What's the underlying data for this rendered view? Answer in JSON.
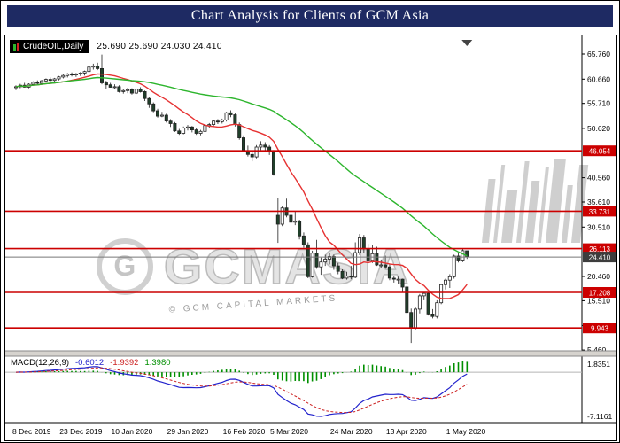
{
  "title_bar": {
    "title": "Chart Analysis for Clients of GCM Asia"
  },
  "symbol_header": {
    "symbol": "CrudeOIL,Daily",
    "ohlc": "25.690 25.690 24.030 24.410"
  },
  "watermark": {
    "logo_letter": "G",
    "brand": "GCMASIA",
    "caption": "© GCM CAPITAL MARKETS"
  },
  "macd_header": {
    "label": "MACD(12,26,9)",
    "values": [
      "-0.6012",
      "-1.9392",
      "1.3980"
    ]
  },
  "colors": {
    "title_bar_bg": "#1e2a63",
    "level_line": "#cc0000",
    "current_price_line": "#777777",
    "current_price_tag": "#3d3d3d",
    "ma_fast": "#e63232",
    "ma_slow": "#2db52d",
    "macd_line": "#2222cc",
    "macd_signal": "#cc2222",
    "macd_histogram": "#008f00"
  },
  "chart_data": {
    "type": "candlestick",
    "title": "CrudeOIL,Daily",
    "timeframe": "Daily",
    "ylim": [
      4.5,
      66.5
    ],
    "y_ticks": [
      65.76,
      60.66,
      55.71,
      50.62,
      40.56,
      35.61,
      30.51,
      20.46,
      15.51,
      10.46,
      5.46
    ],
    "x_ticks": [
      {
        "label": "8 Dec 2019",
        "i": 0
      },
      {
        "label": "23 Dec 2019",
        "i": 11
      },
      {
        "label": "10 Jan 2020",
        "i": 23
      },
      {
        "label": "29 Jan 2020",
        "i": 36
      },
      {
        "label": "16 Feb 2020",
        "i": 49
      },
      {
        "label": "5 Mar 2020",
        "i": 60
      },
      {
        "label": "24 Mar 2020",
        "i": 74
      },
      {
        "label": "13 Apr 2020",
        "i": 87
      },
      {
        "label": "1 May 2020",
        "i": 101
      }
    ],
    "levels": [
      46.054,
      33.731,
      26.113,
      17.208,
      9.943
    ],
    "last_price": 24.41,
    "overlays": [
      {
        "name": "MA fast",
        "type": "sma",
        "period": 13,
        "color": "#e63232"
      },
      {
        "name": "MA slow",
        "type": "sma",
        "period": 50,
        "color": "#2db52d"
      }
    ],
    "indicator": {
      "name": "MACD",
      "fast": 12,
      "slow": 26,
      "signal": 9,
      "values_display": [
        "-0.6012",
        "-1.9392",
        "1.3980"
      ],
      "colors": {
        "macd": "#2222cc",
        "signal": "#cc2222",
        "histogram": "#008f00"
      }
    },
    "macd_scale": {
      "max": "1.8351",
      "min": "-7.1161"
    },
    "ohlc": [
      [
        58.9,
        59.4,
        58.4,
        59.1
      ],
      [
        59.1,
        59.7,
        58.8,
        59.4
      ],
      [
        59.4,
        59.9,
        58.9,
        59.0
      ],
      [
        59.0,
        59.8,
        58.8,
        59.6
      ],
      [
        59.6,
        60.2,
        59.3,
        60.0
      ],
      [
        60.0,
        60.4,
        59.5,
        59.8
      ],
      [
        59.8,
        60.5,
        59.6,
        60.3
      ],
      [
        60.3,
        60.8,
        60.0,
        60.6
      ],
      [
        60.6,
        61.0,
        60.1,
        60.4
      ],
      [
        60.4,
        60.9,
        60.0,
        60.7
      ],
      [
        60.7,
        61.3,
        60.4,
        61.1
      ],
      [
        61.1,
        61.6,
        60.8,
        61.4
      ],
      [
        61.4,
        61.9,
        61.0,
        61.7
      ],
      [
        61.7,
        62.0,
        61.2,
        61.5
      ],
      [
        61.5,
        61.9,
        61.1,
        61.7
      ],
      [
        61.7,
        62.1,
        61.3,
        61.9
      ],
      [
        61.9,
        62.4,
        61.4,
        62.2
      ],
      [
        62.2,
        64.1,
        61.9,
        63.1
      ],
      [
        63.1,
        63.8,
        62.6,
        63.3
      ],
      [
        63.3,
        64.0,
        62.5,
        62.8
      ],
      [
        62.8,
        65.65,
        59.6,
        59.9
      ],
      [
        59.9,
        60.3,
        58.7,
        59.5
      ],
      [
        59.5,
        59.9,
        58.9,
        59.0
      ],
      [
        59.0,
        59.6,
        58.6,
        59.1
      ],
      [
        59.1,
        59.4,
        57.9,
        58.1
      ],
      [
        58.1,
        58.6,
        57.7,
        58.3
      ],
      [
        58.3,
        58.9,
        57.8,
        58.5
      ],
      [
        58.5,
        58.8,
        57.5,
        57.8
      ],
      [
        57.8,
        58.7,
        57.6,
        58.6
      ],
      [
        58.6,
        59.0,
        57.9,
        58.1
      ],
      [
        58.1,
        58.3,
        56.2,
        56.7
      ],
      [
        56.7,
        57.0,
        54.8,
        55.6
      ],
      [
        55.6,
        55.9,
        53.9,
        54.2
      ],
      [
        54.2,
        54.6,
        52.8,
        53.1
      ],
      [
        53.1,
        54.0,
        52.9,
        53.3
      ],
      [
        53.3,
        53.6,
        51.8,
        52.1
      ],
      [
        52.1,
        52.5,
        50.9,
        51.6
      ],
      [
        51.6,
        51.9,
        49.9,
        50.1
      ],
      [
        50.1,
        50.5,
        49.3,
        49.6
      ],
      [
        49.6,
        51.0,
        49.4,
        50.7
      ],
      [
        50.7,
        51.3,
        50.2,
        50.9
      ],
      [
        50.9,
        51.1,
        49.8,
        50.3
      ],
      [
        50.3,
        50.7,
        49.3,
        49.6
      ],
      [
        49.6,
        50.3,
        49.2,
        50.0
      ],
      [
        50.0,
        51.5,
        49.8,
        51.2
      ],
      [
        51.2,
        51.7,
        50.7,
        51.4
      ],
      [
        51.4,
        52.3,
        51.0,
        52.1
      ],
      [
        52.1,
        52.5,
        51.5,
        52.0
      ],
      [
        52.0,
        52.6,
        51.6,
        52.3
      ],
      [
        52.3,
        54.0,
        52.0,
        53.8
      ],
      [
        53.8,
        54.3,
        52.9,
        53.4
      ],
      [
        53.4,
        53.7,
        51.0,
        51.4
      ],
      [
        51.4,
        51.8,
        48.3,
        48.7
      ],
      [
        48.7,
        49.2,
        45.8,
        46.1
      ],
      [
        46.1,
        47.1,
        44.9,
        45.3
      ],
      [
        45.3,
        46.0,
        43.9,
        44.8
      ],
      [
        44.8,
        47.2,
        44.5,
        46.8
      ],
      [
        46.8,
        48.0,
        46.2,
        47.2
      ],
      [
        47.2,
        47.8,
        45.9,
        46.8
      ],
      [
        46.8,
        47.2,
        45.2,
        45.9
      ],
      [
        45.9,
        46.2,
        41.0,
        41.3
      ],
      [
        32.9,
        36.4,
        27.3,
        31.1
      ],
      [
        31.1,
        34.9,
        30.7,
        34.4
      ],
      [
        34.4,
        36.3,
        32.5,
        32.9
      ],
      [
        32.9,
        33.9,
        30.6,
        31.5
      ],
      [
        31.5,
        33.8,
        30.9,
        31.7
      ],
      [
        31.7,
        32.0,
        28.0,
        28.7
      ],
      [
        28.7,
        29.4,
        26.3,
        26.9
      ],
      [
        26.9,
        27.4,
        20.1,
        20.4
      ],
      [
        20.4,
        25.7,
        20.2,
        25.2
      ],
      [
        25.2,
        27.9,
        22.0,
        22.4
      ],
      [
        22.4,
        24.3,
        20.8,
        23.4
      ],
      [
        23.4,
        24.9,
        22.6,
        24.0
      ],
      [
        24.0,
        25.2,
        22.9,
        24.5
      ],
      [
        24.5,
        24.9,
        21.8,
        22.6
      ],
      [
        22.6,
        23.2,
        20.9,
        21.5
      ],
      [
        21.5,
        21.9,
        19.9,
        20.1
      ],
      [
        20.1,
        21.4,
        19.8,
        20.5
      ],
      [
        20.5,
        22.6,
        19.9,
        20.3
      ],
      [
        20.3,
        27.4,
        20.1,
        25.3
      ],
      [
        25.3,
        29.1,
        24.8,
        28.3
      ],
      [
        28.3,
        28.9,
        25.3,
        26.1
      ],
      [
        26.1,
        27.1,
        23.1,
        23.6
      ],
      [
        23.6,
        26.8,
        23.2,
        25.1
      ],
      [
        25.1,
        26.5,
        22.6,
        22.8
      ],
      [
        22.8,
        23.9,
        22.2,
        22.8
      ],
      [
        22.8,
        24.7,
        22.0,
        22.4
      ],
      [
        22.4,
        23.0,
        19.7,
        20.1
      ],
      [
        20.1,
        20.6,
        19.2,
        19.9
      ],
      [
        19.9,
        20.4,
        19.0,
        19.9
      ],
      [
        19.9,
        20.0,
        17.3,
        18.3
      ],
      [
        18.3,
        18.6,
        12.8,
        13.1
      ],
      [
        13.1,
        13.9,
        6.9,
        10.0
      ],
      [
        10.0,
        14.2,
        9.5,
        13.8
      ],
      [
        13.8,
        16.9,
        12.9,
        16.5
      ],
      [
        16.5,
        17.3,
        15.6,
        17.0
      ],
      [
        17.0,
        17.2,
        12.5,
        12.8
      ],
      [
        12.8,
        13.8,
        11.9,
        12.3
      ],
      [
        12.3,
        15.6,
        11.9,
        15.1
      ],
      [
        15.1,
        18.9,
        14.8,
        18.8
      ],
      [
        18.8,
        20.0,
        17.8,
        19.7
      ],
      [
        19.7,
        20.9,
        18.1,
        20.4
      ],
      [
        20.4,
        24.9,
        20.0,
        24.6
      ],
      [
        24.6,
        25.2,
        23.3,
        23.6
      ],
      [
        23.6,
        26.1,
        23.4,
        25.7
      ],
      [
        25.69,
        25.69,
        24.03,
        24.41
      ]
    ]
  }
}
